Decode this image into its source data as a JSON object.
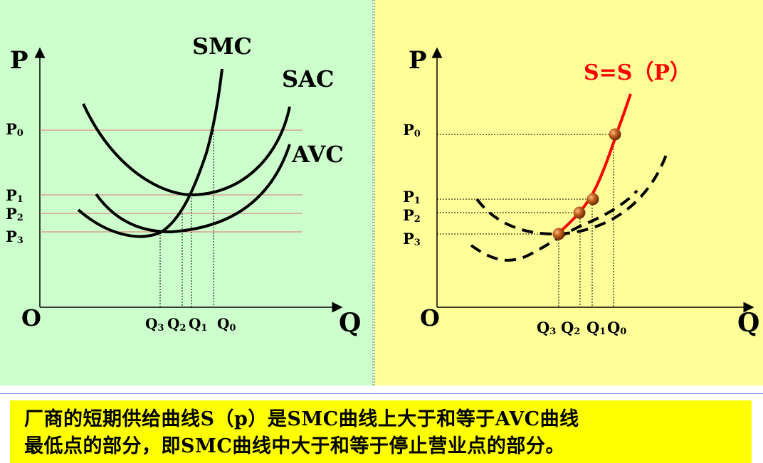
{
  "left": {
    "axis_y": "P",
    "axis_x": "Q",
    "origin": "O",
    "curve_labels": {
      "smc": "SMC",
      "sac": "SAC",
      "avc": "AVC"
    },
    "price_labels": [
      "P",
      "P",
      "P",
      "P"
    ],
    "price_subs": [
      "0",
      "1",
      "2",
      "3"
    ],
    "qty_labels": [
      "Q",
      "Q",
      "Q",
      "Q"
    ],
    "qty_subs": [
      "3",
      "2",
      "1",
      "0"
    ]
  },
  "right": {
    "axis_y": "P",
    "axis_x": "Q",
    "origin": "O",
    "supply_label": "S=S（P）",
    "price_labels": [
      "P",
      "P",
      "P",
      "P"
    ],
    "price_subs": [
      "0",
      "1",
      "2",
      "3"
    ],
    "qty_labels": [
      "Q",
      "Q",
      "Q",
      "Q"
    ],
    "qty_subs": [
      "3",
      "2",
      "1",
      "0"
    ]
  },
  "caption": {
    "line1": "厂商的短期供给曲线S（p）是SMC曲线上大于和等于AVC曲线",
    "line2": "最低点的部分，即SMC曲线中大于和等于停止营业点的部分。"
  },
  "colors": {
    "left_bg": "#ccffcc",
    "right_bg": "#ffff99",
    "caption_bg": "#ffff00",
    "supply": "#ff0000",
    "point": "#b8561a",
    "guide_red": "#e07070"
  }
}
